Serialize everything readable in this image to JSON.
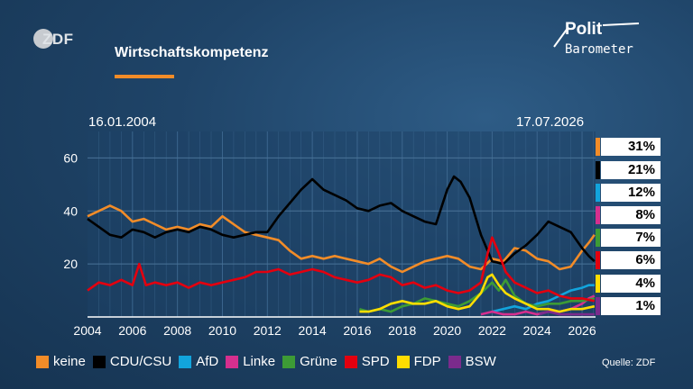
{
  "header": {
    "broadcaster_logo": "ZDF",
    "title": "Wirtschaftskompetenz",
    "brand_line1": "Polit",
    "brand_line2": "Barometer"
  },
  "dates": {
    "start": "16.01.2004",
    "end": "17.07.2026"
  },
  "source": "Quelle: ZDF",
  "chart_data": {
    "type": "line",
    "title": "Wirtschaftskompetenz",
    "xlabel": "",
    "ylabel": "",
    "xlim": [
      2004.0,
      2026.6
    ],
    "ylim": [
      0,
      70
    ],
    "x_ticks": [
      "2004",
      "2006",
      "2008",
      "2010",
      "2012",
      "2014",
      "2016",
      "2018",
      "2020",
      "2022",
      "2024",
      "2026"
    ],
    "y_ticks": [
      "20",
      "40",
      "60"
    ],
    "grid": true,
    "legend_position": "bottom",
    "series": [
      {
        "name": "keine",
        "color": "#f28c28",
        "latest": "31%",
        "points": [
          [
            2004.0,
            38
          ],
          [
            2004.5,
            40
          ],
          [
            2005.0,
            42
          ],
          [
            2005.5,
            40
          ],
          [
            2006.0,
            36
          ],
          [
            2006.5,
            37
          ],
          [
            2007.0,
            35
          ],
          [
            2007.5,
            33
          ],
          [
            2008.0,
            34
          ],
          [
            2008.5,
            33
          ],
          [
            2009.0,
            35
          ],
          [
            2009.5,
            34
          ],
          [
            2010.0,
            38
          ],
          [
            2010.5,
            35
          ],
          [
            2011.0,
            32
          ],
          [
            2011.5,
            31
          ],
          [
            2012.0,
            30
          ],
          [
            2012.5,
            29
          ],
          [
            2013.0,
            25
          ],
          [
            2013.5,
            22
          ],
          [
            2014.0,
            23
          ],
          [
            2014.5,
            22
          ],
          [
            2015.0,
            23
          ],
          [
            2015.5,
            22
          ],
          [
            2016.0,
            21
          ],
          [
            2016.5,
            20
          ],
          [
            2017.0,
            22
          ],
          [
            2017.5,
            19
          ],
          [
            2018.0,
            17
          ],
          [
            2018.5,
            19
          ],
          [
            2019.0,
            21
          ],
          [
            2019.5,
            22
          ],
          [
            2020.0,
            23
          ],
          [
            2020.5,
            22
          ],
          [
            2021.0,
            19
          ],
          [
            2021.5,
            18
          ],
          [
            2022.0,
            22
          ],
          [
            2022.5,
            21
          ],
          [
            2023.0,
            26
          ],
          [
            2023.5,
            25
          ],
          [
            2024.0,
            22
          ],
          [
            2024.5,
            21
          ],
          [
            2025.0,
            18
          ],
          [
            2025.5,
            19
          ],
          [
            2026.0,
            25
          ],
          [
            2026.3,
            28
          ],
          [
            2026.55,
            31
          ]
        ]
      },
      {
        "name": "CDU/CSU",
        "color": "#000000",
        "latest": "21%",
        "points": [
          [
            2004.0,
            37
          ],
          [
            2004.5,
            34
          ],
          [
            2005.0,
            31
          ],
          [
            2005.5,
            30
          ],
          [
            2006.0,
            33
          ],
          [
            2006.5,
            32
          ],
          [
            2007.0,
            30
          ],
          [
            2007.5,
            32
          ],
          [
            2008.0,
            33
          ],
          [
            2008.5,
            32
          ],
          [
            2009.0,
            34
          ],
          [
            2009.5,
            33
          ],
          [
            2010.0,
            31
          ],
          [
            2010.5,
            30
          ],
          [
            2011.0,
            31
          ],
          [
            2011.5,
            32
          ],
          [
            2012.0,
            32
          ],
          [
            2012.5,
            38
          ],
          [
            2013.0,
            43
          ],
          [
            2013.5,
            48
          ],
          [
            2014.0,
            52
          ],
          [
            2014.5,
            48
          ],
          [
            2015.0,
            46
          ],
          [
            2015.5,
            44
          ],
          [
            2016.0,
            41
          ],
          [
            2016.5,
            40
          ],
          [
            2017.0,
            42
          ],
          [
            2017.5,
            43
          ],
          [
            2018.0,
            40
          ],
          [
            2018.5,
            38
          ],
          [
            2019.0,
            36
          ],
          [
            2019.5,
            35
          ],
          [
            2020.0,
            48
          ],
          [
            2020.3,
            53
          ],
          [
            2020.6,
            51
          ],
          [
            2021.0,
            45
          ],
          [
            2021.5,
            31
          ],
          [
            2022.0,
            21
          ],
          [
            2022.5,
            20
          ],
          [
            2023.0,
            24
          ],
          [
            2023.5,
            27
          ],
          [
            2024.0,
            31
          ],
          [
            2024.5,
            36
          ],
          [
            2025.0,
            34
          ],
          [
            2025.5,
            32
          ],
          [
            2026.0,
            26
          ],
          [
            2026.3,
            23
          ],
          [
            2026.55,
            21
          ]
        ]
      },
      {
        "name": "AfD",
        "color": "#12a4dd",
        "latest": "12%",
        "points": [
          [
            2022.0,
            2
          ],
          [
            2022.5,
            3
          ],
          [
            2023.0,
            4
          ],
          [
            2023.5,
            3
          ],
          [
            2024.0,
            5
          ],
          [
            2024.5,
            6
          ],
          [
            2025.0,
            8
          ],
          [
            2025.5,
            10
          ],
          [
            2026.0,
            11
          ],
          [
            2026.3,
            12
          ],
          [
            2026.55,
            12
          ]
        ]
      },
      {
        "name": "Linke",
        "color": "#d62f8e",
        "latest": "8%",
        "points": [
          [
            2021.5,
            1
          ],
          [
            2022.0,
            2
          ],
          [
            2022.5,
            1
          ],
          [
            2023.0,
            1
          ],
          [
            2023.5,
            2
          ],
          [
            2024.0,
            1
          ],
          [
            2024.5,
            2
          ],
          [
            2025.0,
            2
          ],
          [
            2025.5,
            3
          ],
          [
            2026.0,
            5
          ],
          [
            2026.3,
            7
          ],
          [
            2026.55,
            8
          ]
        ]
      },
      {
        "name": "Grüne",
        "color": "#3d9b35",
        "latest": "7%",
        "points": [
          [
            2016.1,
            3
          ],
          [
            2016.5,
            2
          ],
          [
            2017.0,
            3
          ],
          [
            2017.5,
            2
          ],
          [
            2018.0,
            4
          ],
          [
            2018.5,
            5
          ],
          [
            2019.0,
            7
          ],
          [
            2019.5,
            6
          ],
          [
            2020.0,
            5
          ],
          [
            2020.5,
            4
          ],
          [
            2021.0,
            6
          ],
          [
            2021.5,
            9
          ],
          [
            2022.0,
            13
          ],
          [
            2022.3,
            10
          ],
          [
            2022.6,
            14
          ],
          [
            2023.0,
            8
          ],
          [
            2023.5,
            5
          ],
          [
            2024.0,
            4
          ],
          [
            2024.5,
            5
          ],
          [
            2025.0,
            5
          ],
          [
            2025.5,
            6
          ],
          [
            2026.0,
            6
          ],
          [
            2026.55,
            7
          ]
        ]
      },
      {
        "name": "SPD",
        "color": "#e3000f",
        "latest": "6%",
        "points": [
          [
            2004.0,
            10
          ],
          [
            2004.5,
            13
          ],
          [
            2005.0,
            12
          ],
          [
            2005.5,
            14
          ],
          [
            2006.0,
            12
          ],
          [
            2006.3,
            20
          ],
          [
            2006.6,
            12
          ],
          [
            2007.0,
            13
          ],
          [
            2007.5,
            12
          ],
          [
            2008.0,
            13
          ],
          [
            2008.5,
            11
          ],
          [
            2009.0,
            13
          ],
          [
            2009.5,
            12
          ],
          [
            2010.0,
            13
          ],
          [
            2010.5,
            14
          ],
          [
            2011.0,
            15
          ],
          [
            2011.5,
            17
          ],
          [
            2012.0,
            17
          ],
          [
            2012.5,
            18
          ],
          [
            2013.0,
            16
          ],
          [
            2013.5,
            17
          ],
          [
            2014.0,
            18
          ],
          [
            2014.5,
            17
          ],
          [
            2015.0,
            15
          ],
          [
            2015.5,
            14
          ],
          [
            2016.0,
            13
          ],
          [
            2016.5,
            14
          ],
          [
            2017.0,
            16
          ],
          [
            2017.5,
            15
          ],
          [
            2018.0,
            12
          ],
          [
            2018.5,
            13
          ],
          [
            2019.0,
            11
          ],
          [
            2019.5,
            12
          ],
          [
            2020.0,
            10
          ],
          [
            2020.5,
            9
          ],
          [
            2021.0,
            10
          ],
          [
            2021.5,
            13
          ],
          [
            2021.8,
            24
          ],
          [
            2022.0,
            30
          ],
          [
            2022.3,
            24
          ],
          [
            2022.6,
            17
          ],
          [
            2023.0,
            13
          ],
          [
            2023.5,
            11
          ],
          [
            2024.0,
            9
          ],
          [
            2024.5,
            10
          ],
          [
            2025.0,
            8
          ],
          [
            2025.5,
            7
          ],
          [
            2026.0,
            7
          ],
          [
            2026.55,
            6
          ]
        ]
      },
      {
        "name": "FDP",
        "color": "#ffdd00",
        "latest": "4%",
        "points": [
          [
            2016.1,
            2
          ],
          [
            2016.5,
            2
          ],
          [
            2017.0,
            3
          ],
          [
            2017.5,
            5
          ],
          [
            2018.0,
            6
          ],
          [
            2018.5,
            5
          ],
          [
            2019.0,
            5
          ],
          [
            2019.5,
            6
          ],
          [
            2020.0,
            4
          ],
          [
            2020.5,
            3
          ],
          [
            2021.0,
            4
          ],
          [
            2021.5,
            9
          ],
          [
            2021.8,
            15
          ],
          [
            2022.0,
            16
          ],
          [
            2022.3,
            12
          ],
          [
            2022.6,
            9
          ],
          [
            2023.0,
            7
          ],
          [
            2023.5,
            5
          ],
          [
            2024.0,
            3
          ],
          [
            2024.5,
            3
          ],
          [
            2025.0,
            2
          ],
          [
            2025.5,
            3
          ],
          [
            2026.0,
            3
          ],
          [
            2026.55,
            4
          ]
        ]
      },
      {
        "name": "BSW",
        "color": "#7b2b8c",
        "latest": "1%",
        "points": [
          [
            2024.1,
            1
          ],
          [
            2024.5,
            2
          ],
          [
            2025.0,
            1
          ],
          [
            2025.5,
            1
          ],
          [
            2026.0,
            1
          ],
          [
            2026.55,
            1
          ]
        ]
      }
    ]
  }
}
